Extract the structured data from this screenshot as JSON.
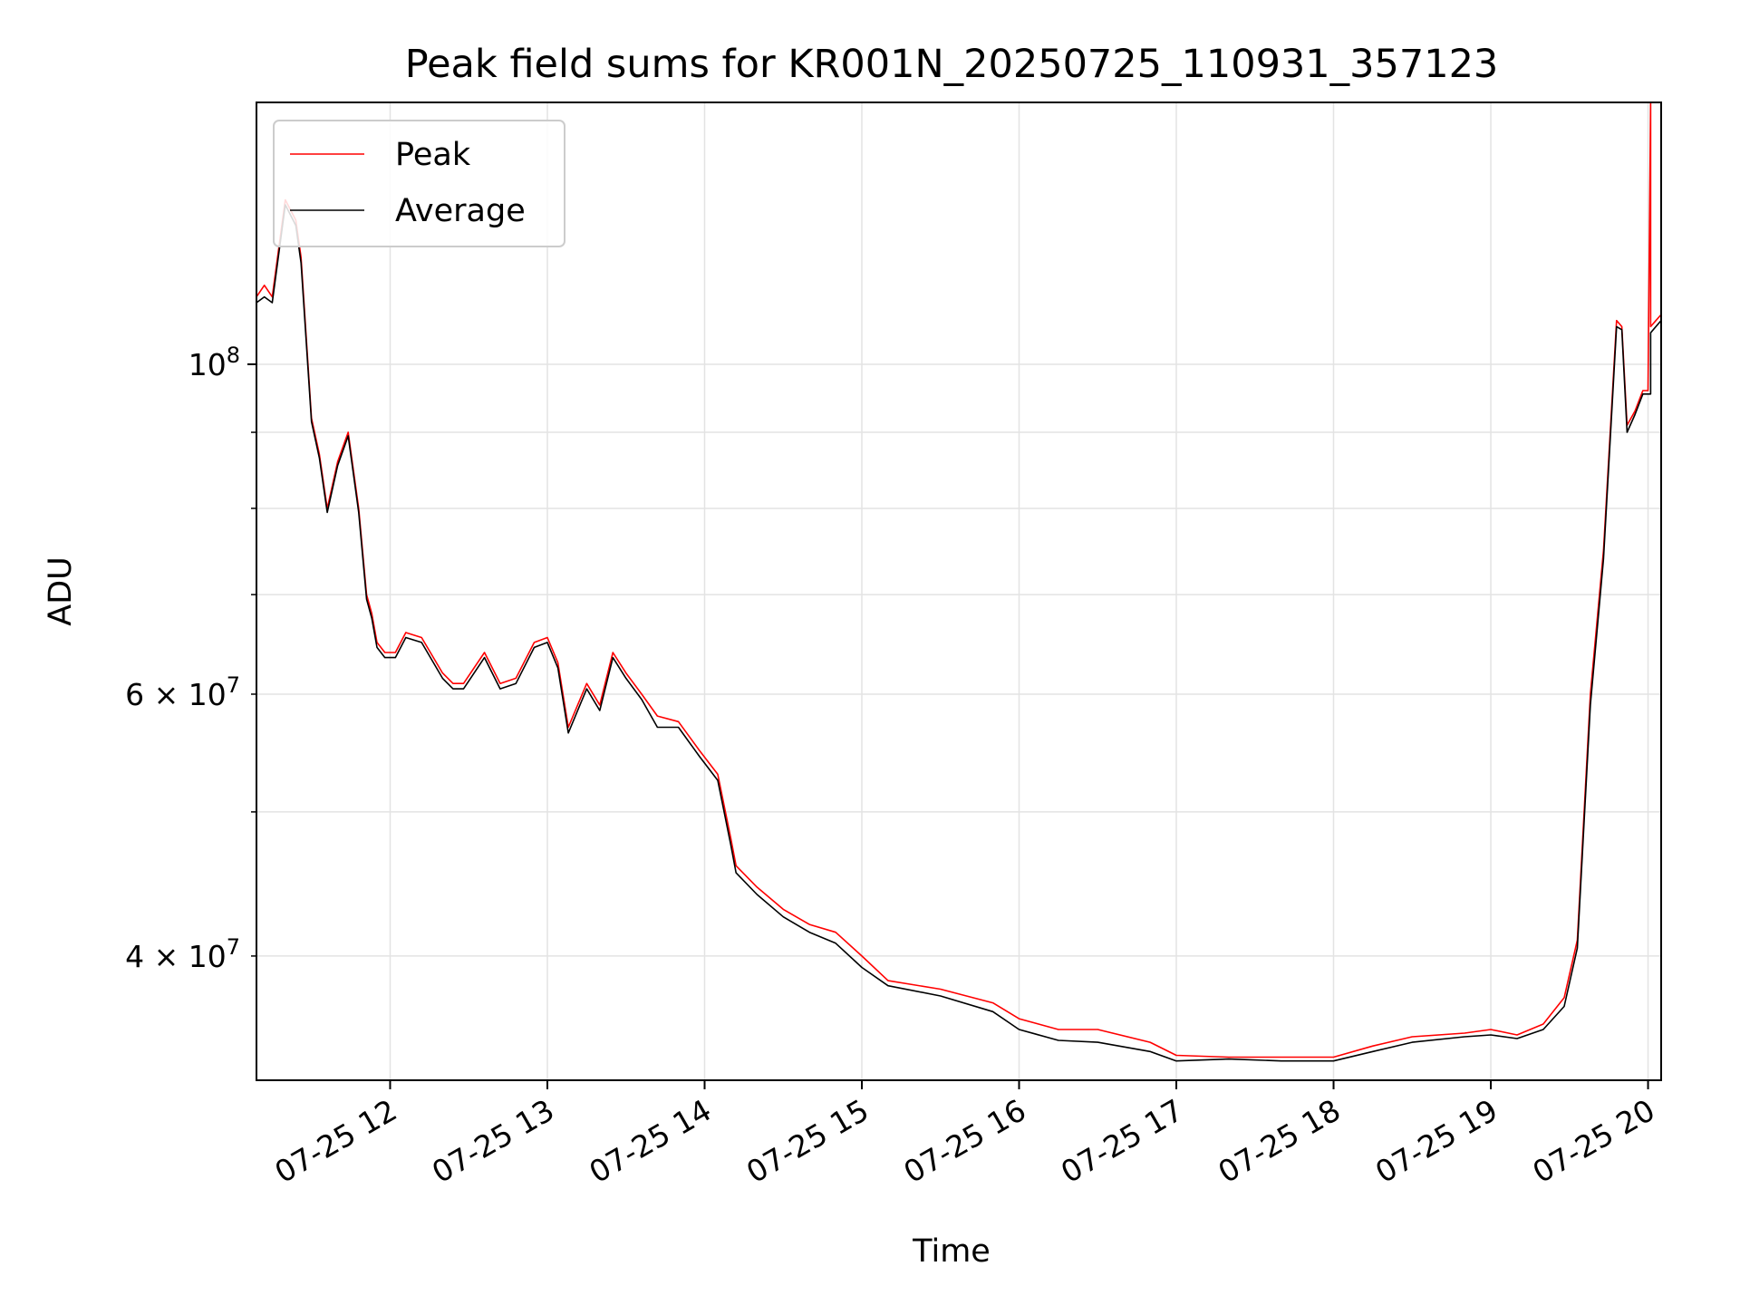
{
  "chart_data": {
    "type": "line",
    "title": "Peak field sums for KR001N_20250725_110931_357123",
    "xlabel": "Time",
    "ylabel": "ADU",
    "y_scale": "log",
    "xlim": [
      "2025-07-25 11:09",
      "2025-07-25 20:05"
    ],
    "ylim": [
      33000000,
      150000000
    ],
    "grid": true,
    "legend_position": "top-left",
    "x_ticks": [
      "2025-07-25 12:00",
      "2025-07-25 13:00",
      "2025-07-25 14:00",
      "2025-07-25 15:00",
      "2025-07-25 16:00",
      "2025-07-25 17:00",
      "2025-07-25 18:00",
      "2025-07-25 19:00",
      "2025-07-25 20:00"
    ],
    "x_tick_labels": [
      "07-25 12",
      "07-25 13",
      "07-25 14",
      "07-25 15",
      "07-25 16",
      "07-25 17",
      "07-25 18",
      "07-25 19",
      "07-25 20"
    ],
    "y_major_ticks": [
      100000000
    ],
    "y_major_tick_labels": [
      "10^8"
    ],
    "y_minor_ticks": [
      40000000,
      50000000,
      60000000,
      70000000,
      80000000,
      90000000
    ],
    "y_minor_tick_labels": [
      "4 × 10^7",
      "",
      "6 × 10^7",
      "",
      "",
      ""
    ],
    "series": [
      {
        "name": "Peak",
        "color": "#ff0000",
        "x": [
          "2025-07-25 11:09",
          "2025-07-25 11:12",
          "2025-07-25 11:15",
          "2025-07-25 11:20",
          "2025-07-25 11:24",
          "2025-07-25 11:26",
          "2025-07-25 11:30",
          "2025-07-25 11:33",
          "2025-07-25 11:36",
          "2025-07-25 11:40",
          "2025-07-25 11:44",
          "2025-07-25 11:48",
          "2025-07-25 11:51",
          "2025-07-25 11:53",
          "2025-07-25 11:55",
          "2025-07-25 11:58",
          "2025-07-25 12:02",
          "2025-07-25 12:06",
          "2025-07-25 12:12",
          "2025-07-25 12:20",
          "2025-07-25 12:24",
          "2025-07-25 12:28",
          "2025-07-25 12:36",
          "2025-07-25 12:42",
          "2025-07-25 12:48",
          "2025-07-25 12:55",
          "2025-07-25 13:00",
          "2025-07-25 13:04",
          "2025-07-25 13:08",
          "2025-07-25 13:15",
          "2025-07-25 13:20",
          "2025-07-25 13:25",
          "2025-07-25 13:30",
          "2025-07-25 13:36",
          "2025-07-25 13:42",
          "2025-07-25 13:50",
          "2025-07-25 13:58",
          "2025-07-25 14:05",
          "2025-07-25 14:10",
          "2025-07-25 14:12",
          "2025-07-25 14:20",
          "2025-07-25 14:30",
          "2025-07-25 14:40",
          "2025-07-25 14:50",
          "2025-07-25 15:00",
          "2025-07-25 15:10",
          "2025-07-25 15:30",
          "2025-07-25 15:50",
          "2025-07-25 16:00",
          "2025-07-25 16:15",
          "2025-07-25 16:30",
          "2025-07-25 16:50",
          "2025-07-25 17:00",
          "2025-07-25 17:20",
          "2025-07-25 17:40",
          "2025-07-25 18:00",
          "2025-07-25 18:15",
          "2025-07-25 18:30",
          "2025-07-25 18:50",
          "2025-07-25 19:00",
          "2025-07-25 19:10",
          "2025-07-25 19:20",
          "2025-07-25 19:28",
          "2025-07-25 19:33",
          "2025-07-25 19:38",
          "2025-07-25 19:43",
          "2025-07-25 19:48",
          "2025-07-25 19:50",
          "2025-07-25 19:52",
          "2025-07-25 19:55",
          "2025-07-25 19:58",
          "2025-07-25 20:00",
          "2025-07-25 20:01",
          "2025-07-25 20:01",
          "2025-07-25 20:03",
          "2025-07-25 20:05"
        ],
        "values": [
          111000000,
          113000000,
          111000000,
          129000000,
          125000000,
          118000000,
          92000000,
          87000000,
          80000000,
          86000000,
          90000000,
          80000000,
          70000000,
          68000000,
          65000000,
          64000000,
          64000000,
          66000000,
          65500000,
          62000000,
          61000000,
          61000000,
          64000000,
          61000000,
          61500000,
          65000000,
          65500000,
          63000000,
          57000000,
          61000000,
          59000000,
          64000000,
          62000000,
          60000000,
          58000000,
          57500000,
          55000000,
          53000000,
          48000000,
          46000000,
          44500000,
          43000000,
          42000000,
          41500000,
          40000000,
          38500000,
          38000000,
          37200000,
          36300000,
          35700000,
          35700000,
          35000000,
          34300000,
          34200000,
          34200000,
          34200000,
          34800000,
          35300000,
          35500000,
          35700000,
          35400000,
          36000000,
          37500000,
          41000000,
          60000000,
          75000000,
          107000000,
          106000000,
          91000000,
          93000000,
          96000000,
          96000000,
          150000000,
          106000000,
          107000000,
          108000000
        ]
      },
      {
        "name": "Average",
        "color": "#000000",
        "x": [
          "2025-07-25 11:09",
          "2025-07-25 11:12",
          "2025-07-25 11:15",
          "2025-07-25 11:20",
          "2025-07-25 11:24",
          "2025-07-25 11:26",
          "2025-07-25 11:30",
          "2025-07-25 11:33",
          "2025-07-25 11:36",
          "2025-07-25 11:40",
          "2025-07-25 11:44",
          "2025-07-25 11:48",
          "2025-07-25 11:51",
          "2025-07-25 11:53",
          "2025-07-25 11:55",
          "2025-07-25 11:58",
          "2025-07-25 12:02",
          "2025-07-25 12:06",
          "2025-07-25 12:12",
          "2025-07-25 12:20",
          "2025-07-25 12:24",
          "2025-07-25 12:28",
          "2025-07-25 12:36",
          "2025-07-25 12:42",
          "2025-07-25 12:48",
          "2025-07-25 12:55",
          "2025-07-25 13:00",
          "2025-07-25 13:04",
          "2025-07-25 13:08",
          "2025-07-25 13:15",
          "2025-07-25 13:20",
          "2025-07-25 13:25",
          "2025-07-25 13:30",
          "2025-07-25 13:36",
          "2025-07-25 13:42",
          "2025-07-25 13:50",
          "2025-07-25 13:58",
          "2025-07-25 14:05",
          "2025-07-25 14:10",
          "2025-07-25 14:12",
          "2025-07-25 14:20",
          "2025-07-25 14:30",
          "2025-07-25 14:40",
          "2025-07-25 14:50",
          "2025-07-25 15:00",
          "2025-07-25 15:10",
          "2025-07-25 15:30",
          "2025-07-25 15:50",
          "2025-07-25 16:00",
          "2025-07-25 16:15",
          "2025-07-25 16:30",
          "2025-07-25 16:50",
          "2025-07-25 17:00",
          "2025-07-25 17:20",
          "2025-07-25 17:40",
          "2025-07-25 18:00",
          "2025-07-25 18:15",
          "2025-07-25 18:30",
          "2025-07-25 18:50",
          "2025-07-25 19:00",
          "2025-07-25 19:10",
          "2025-07-25 19:20",
          "2025-07-25 19:28",
          "2025-07-25 19:33",
          "2025-07-25 19:38",
          "2025-07-25 19:43",
          "2025-07-25 19:48",
          "2025-07-25 19:50",
          "2025-07-25 19:52",
          "2025-07-25 19:55",
          "2025-07-25 19:58",
          "2025-07-25 20:00",
          "2025-07-25 20:01",
          "2025-07-25 20:01",
          "2025-07-25 20:03",
          "2025-07-25 20:05"
        ],
        "values": [
          110000000,
          111000000,
          110000000,
          128000000,
          124000000,
          117000000,
          91500000,
          86500000,
          79500000,
          85500000,
          89500000,
          79500000,
          69500000,
          67500000,
          64500000,
          63500000,
          63500000,
          65500000,
          65000000,
          61500000,
          60500000,
          60500000,
          63500000,
          60500000,
          61000000,
          64500000,
          65000000,
          62500000,
          56500000,
          60500000,
          58500000,
          63500000,
          61500000,
          59500000,
          57000000,
          57000000,
          54500000,
          52500000,
          47500000,
          45500000,
          44000000,
          42500000,
          41500000,
          40800000,
          39300000,
          38200000,
          37600000,
          36700000,
          35700000,
          35100000,
          35000000,
          34500000,
          34000000,
          34100000,
          34000000,
          34000000,
          34500000,
          35000000,
          35300000,
          35400000,
          35200000,
          35700000,
          37000000,
          40500000,
          59000000,
          74000000,
          106000000,
          105500000,
          90000000,
          92500000,
          95500000,
          95500000,
          95500000,
          105000000,
          106000000,
          107000000
        ]
      }
    ]
  }
}
